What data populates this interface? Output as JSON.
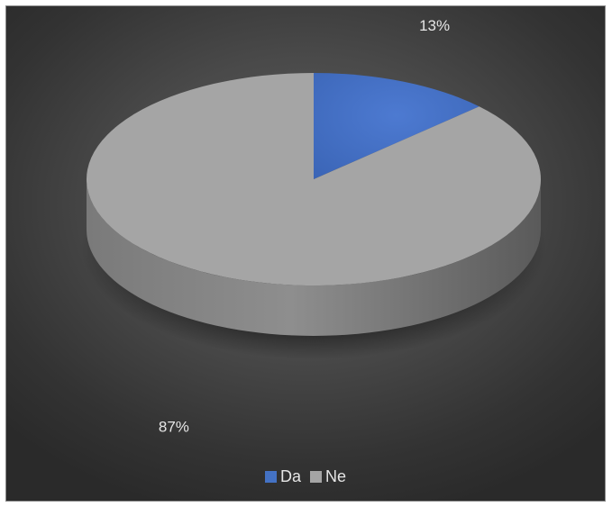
{
  "chart_data": {
    "type": "pie",
    "style": "3d",
    "categories": [
      "Da",
      "Ne"
    ],
    "values": [
      13,
      87
    ],
    "labels": [
      "13%",
      "87%"
    ],
    "colors": [
      "#4472c4",
      "#a5a5a5"
    ],
    "legend_position": "bottom"
  }
}
